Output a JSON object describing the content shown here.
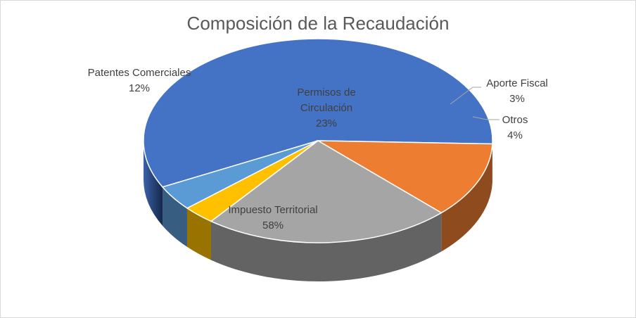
{
  "chart_data": {
    "type": "pie",
    "title": "Composición de la Recaudación",
    "slices": [
      {
        "name": "Impuesto Territorial",
        "value": 58,
        "pct_label": "58%",
        "color": "#4472c4"
      },
      {
        "name": "Patentes Comerciales",
        "value": 12,
        "pct_label": "12%",
        "color": "#ed7d31"
      },
      {
        "name": "Permisos de Circulación",
        "name_lines": [
          "Permisos de",
          "Circulación"
        ],
        "value": 23,
        "pct_label": "23%",
        "color": "#a5a5a5"
      },
      {
        "name": "Aporte Fiscal",
        "value": 3,
        "pct_label": "3%",
        "color": "#ffc000"
      },
      {
        "name": "Otros",
        "value": 4,
        "pct_label": "4%",
        "color": "#5b9bd5"
      }
    ]
  }
}
